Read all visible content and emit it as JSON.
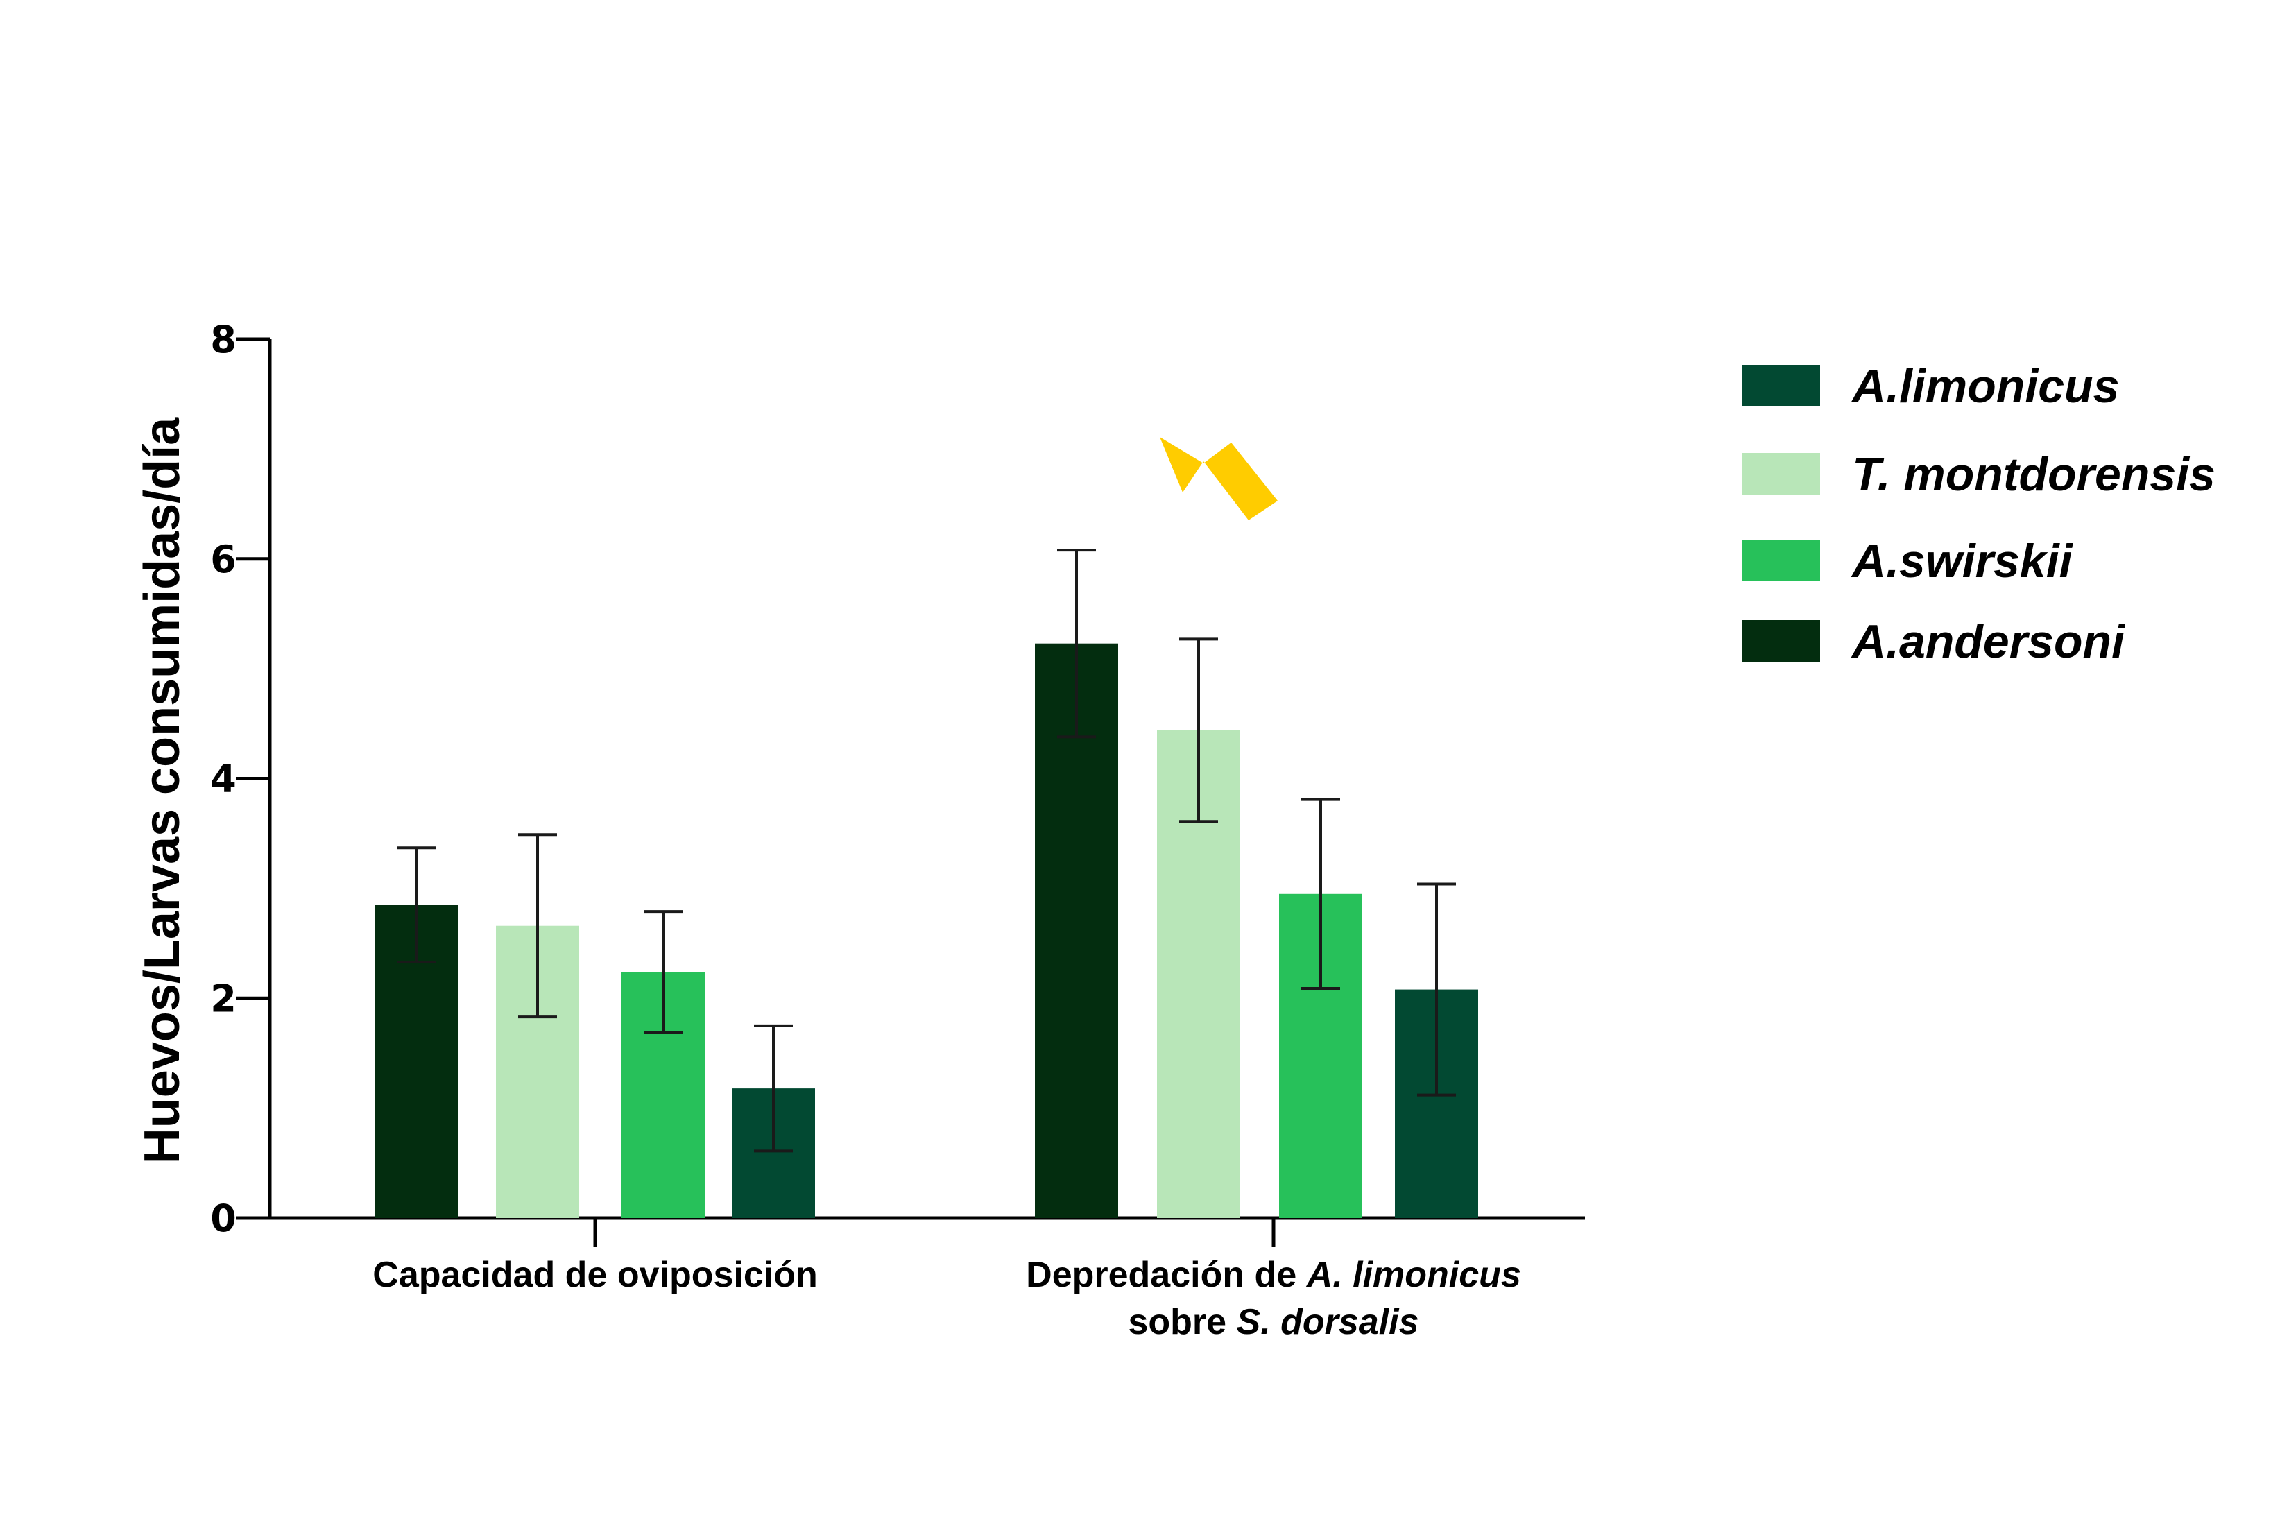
{
  "chart_data": {
    "type": "bar",
    "ylabel": "Huevos/Larvas consumidas/día",
    "ylim": [
      0,
      8
    ],
    "yticks": [
      "0",
      "2",
      "4",
      "6",
      "8"
    ],
    "categories": [
      {
        "parts": [
          {
            "text": "Capacidad de oviposición",
            "italic": false
          }
        ]
      },
      {
        "parts": [
          {
            "text": "Depredación de ",
            "italic": false
          },
          {
            "text": "A. limonicus",
            "italic": true
          }
        ],
        "line2": [
          {
            "text": "sobre  ",
            "italic": false
          },
          {
            "text": "S. dorsalis",
            "italic": true
          }
        ]
      }
    ],
    "series": [
      {
        "name": "A.andersoni",
        "color": "#032d0f",
        "values": [
          2.85,
          5.23
        ],
        "errors": [
          0.52,
          0.85
        ]
      },
      {
        "name": "T. montdorensis",
        "color": "#b8e6b8",
        "values": [
          2.66,
          4.44
        ],
        "errors": [
          0.83,
          0.83
        ]
      },
      {
        "name": "A.swirskii",
        "color": "#27c15a",
        "values": [
          2.24,
          2.95
        ],
        "errors": [
          0.55,
          0.86
        ]
      },
      {
        "name": "A.limonicus",
        "color": "#024932",
        "values": [
          1.18,
          2.08
        ],
        "errors": [
          0.57,
          0.96
        ]
      }
    ],
    "legend": {
      "position": "right",
      "order": [
        "A.limonicus",
        "T. montdorensis",
        "A.swirskii",
        "A.andersoni"
      ]
    },
    "annotation": {
      "type": "arrow",
      "color": "#ffcc00",
      "target": "A.andersoni in group 2"
    },
    "grid": false
  }
}
